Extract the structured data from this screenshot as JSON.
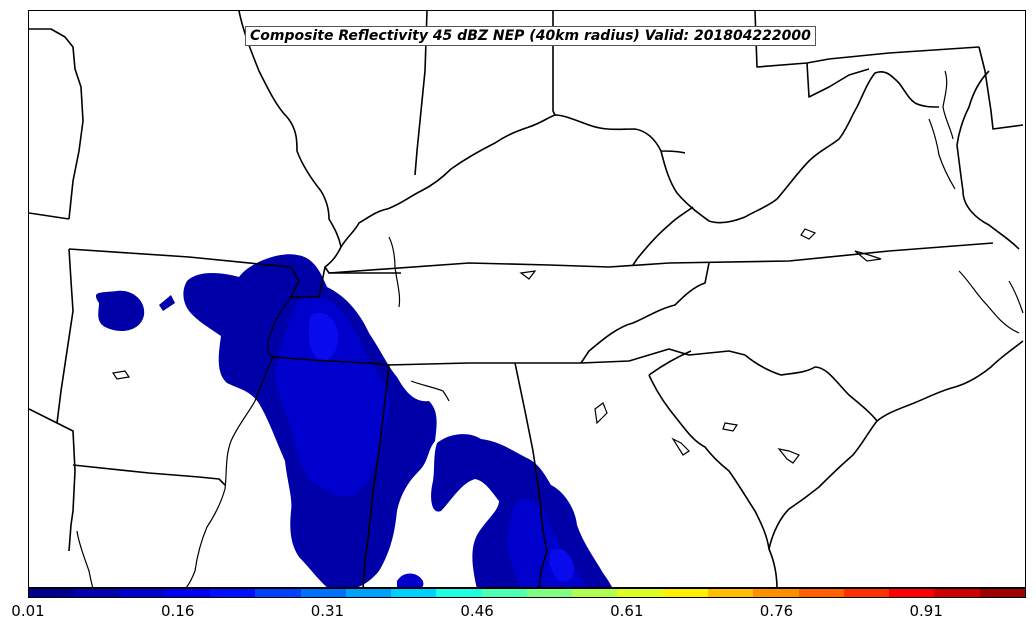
{
  "title": "Composite Reflectivity 45 dBZ NEP (40km radius) Valid: 201804222000",
  "colorbar": {
    "colors": [
      "#00008f",
      "#0000af",
      "#0000cf",
      "#0000ef",
      "#0010ff",
      "#0040ff",
      "#0070ff",
      "#00a0ff",
      "#00d0ff",
      "#20ffdf",
      "#50ffaf",
      "#80ff80",
      "#afff50",
      "#dfff20",
      "#ffef00",
      "#ffbf00",
      "#ff8f00",
      "#ff6000",
      "#ff3000",
      "#ff0000",
      "#cf0000",
      "#9f0000"
    ],
    "ticks": [
      "0.01",
      "0.16",
      "0.31",
      "0.46",
      "0.61",
      "0.76",
      "0.91"
    ]
  },
  "probability_fields": [
    {
      "level": "0.01-0.06",
      "color": "#0000a8"
    },
    {
      "level": "0.06-0.11",
      "color": "#0000cc"
    },
    {
      "level": "0.11-0.16",
      "color": "#0a0aee"
    }
  ]
}
